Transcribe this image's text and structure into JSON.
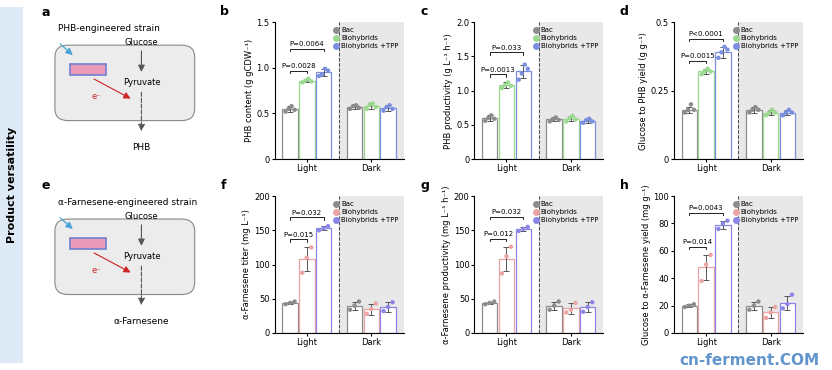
{
  "side_label": "Product versatility",
  "watermark": "cn-ferment.COM",
  "diagrams": [
    {
      "panel": "a",
      "title": "PHB-engineered strain",
      "substrate": "Glucose",
      "intermediate": "Pyruvate",
      "electron": "e⁻",
      "product": "PHB"
    },
    {
      "panel": "e",
      "title": "α-Farnesene-engineered strain",
      "substrate": "Glucose",
      "intermediate": "Pyruvate",
      "electron": "e⁻",
      "product": "α-Farnesene"
    }
  ],
  "chart_data": [
    {
      "type": "bar",
      "panel": "b",
      "y_label": "PHB content (g gCDW⁻¹)",
      "categories": [
        "Light",
        "Dark"
      ],
      "ylim": [
        0,
        1.5
      ],
      "yticks": [
        0,
        0.5,
        {
          "value": 1,
          "label": "1.0"
        },
        1.5
      ],
      "legend": "upper right",
      "series": [
        {
          "name": "Bac",
          "color": "#8c8c8c",
          "values": [
            0.55,
            0.57
          ],
          "errors": [
            0.03,
            0.02
          ],
          "points": [
            [
              0.52,
              0.55,
              0.58,
              0.54
            ],
            [
              0.55,
              0.58,
              0.59,
              0.56
            ]
          ]
        },
        {
          "name": "Biohybrids",
          "color": "#9ad98f",
          "values": [
            0.86,
            0.58
          ],
          "errors": [
            0.02,
            0.03
          ],
          "points": [
            [
              0.84,
              0.86,
              0.88,
              0.85
            ],
            [
              0.55,
              0.6,
              0.61,
              0.57
            ]
          ]
        },
        {
          "name": "Biohybrids +TPP",
          "color": "#7b8fe0",
          "values": [
            0.95,
            0.56
          ],
          "errors": [
            0.04,
            0.03
          ],
          "points": [
            [
              0.91,
              0.93,
              0.99,
              0.97
            ],
            [
              0.53,
              0.57,
              0.59,
              0.55
            ]
          ]
        }
      ],
      "brackets": [
        {
          "category": "Light",
          "from": "Bac",
          "to": "Biohybrids",
          "label": "P=0.0028"
        },
        {
          "category": "Light",
          "from": "Bac",
          "to": "Biohybrids +TPP",
          "label": "P=0.0064"
        }
      ]
    },
    {
      "type": "bar",
      "panel": "c",
      "y_label": "PHB productivity (g L⁻¹ h⁻¹)",
      "categories": [
        "Light",
        "Dark"
      ],
      "ylim": [
        0,
        2
      ],
      "yticks": [
        0,
        0.5,
        {
          "value": 1,
          "label": "1.0"
        },
        1.5,
        {
          "value": 2,
          "label": "2.0"
        }
      ],
      "legend": "upper right",
      "series": [
        {
          "name": "Bac",
          "color": "#8c8c8c",
          "values": [
            0.6,
            0.58
          ],
          "errors": [
            0.04,
            0.03
          ],
          "points": [
            [
              0.56,
              0.6,
              0.64,
              0.59
            ],
            [
              0.55,
              0.58,
              0.61,
              0.57
            ]
          ]
        },
        {
          "name": "Biohybrids",
          "color": "#9ad98f",
          "values": [
            1.08,
            0.59
          ],
          "errors": [
            0.04,
            0.04
          ],
          "points": [
            [
              1.04,
              1.08,
              1.12,
              1.07
            ],
            [
              0.55,
              0.6,
              0.63,
              0.58
            ]
          ]
        },
        {
          "name": "Biohybrids +TPP",
          "color": "#7b8fe0",
          "values": [
            1.28,
            0.56
          ],
          "errors": [
            0.1,
            0.03
          ],
          "points": [
            [
              1.16,
              1.25,
              1.38,
              1.32
            ],
            [
              0.53,
              0.57,
              0.59,
              0.55
            ]
          ]
        }
      ],
      "brackets": [
        {
          "category": "Light",
          "from": "Bac",
          "to": "Biohybrids",
          "label": "P=0.0013"
        },
        {
          "category": "Light",
          "from": "Bac",
          "to": "Biohybrids +TPP",
          "label": "P=0.033"
        }
      ]
    },
    {
      "type": "bar",
      "panel": "d",
      "y_label": "Glucose to PHB yield (g g⁻¹)",
      "categories": [
        "Light",
        "Dark"
      ],
      "ylim": [
        0,
        0.5
      ],
      "yticks": [
        0,
        0.25,
        0.5
      ],
      "legend": "upper right",
      "series": [
        {
          "name": "Bac",
          "color": "#8c8c8c",
          "values": [
            0.18,
            0.18
          ],
          "errors": [
            0.01,
            0.01
          ],
          "points": [
            [
              0.17,
              0.18,
              0.2,
              0.18
            ],
            [
              0.17,
              0.18,
              0.19,
              0.18
            ]
          ]
        },
        {
          "name": "Biohybrids",
          "color": "#9ad98f",
          "values": [
            0.32,
            0.17
          ],
          "errors": [
            0.01,
            0.01
          ],
          "points": [
            [
              0.31,
              0.32,
              0.33,
              0.32
            ],
            [
              0.16,
              0.17,
              0.18,
              0.17
            ]
          ]
        },
        {
          "name": "Biohybrids +TPP",
          "color": "#7b8fe0",
          "values": [
            0.39,
            0.17
          ],
          "errors": [
            0.02,
            0.01
          ],
          "points": [
            [
              0.37,
              0.39,
              0.41,
              0.4
            ],
            [
              0.16,
              0.17,
              0.18,
              0.17
            ]
          ]
        }
      ],
      "brackets": [
        {
          "category": "Light",
          "from": "Bac",
          "to": "Biohybrids",
          "label": "P=0.0015"
        },
        {
          "category": "Light",
          "from": "Bac",
          "to": "Biohybrids +TPP",
          "label": "P<0.0001"
        }
      ]
    },
    {
      "type": "bar",
      "panel": "f",
      "y_label": "α-Farnesene titer (mg L⁻¹)",
      "categories": [
        "Light",
        "Dark"
      ],
      "ylim": [
        0,
        200
      ],
      "yticks": [
        0,
        50,
        100,
        150,
        200
      ],
      "legend": "upper right",
      "series": [
        {
          "name": "Bac",
          "color": "#8c8c8c",
          "values": [
            44,
            40
          ],
          "errors": [
            2,
            6
          ],
          "points": [
            [
              42,
              44,
              46
            ],
            [
              34,
              40,
              46
            ]
          ]
        },
        {
          "name": "Biohybrids",
          "color": "#eba3a3",
          "values": [
            108,
            35
          ],
          "errors": [
            17,
            8
          ],
          "points": [
            [
              88,
              110,
              125
            ],
            [
              28,
              35,
              43
            ]
          ]
        },
        {
          "name": "Biohybrids +TPP",
          "color": "#8a85e6",
          "values": [
            153,
            38
          ],
          "errors": [
            3,
            7
          ],
          "points": [
            [
              150,
              153,
              156
            ],
            [
              32,
              38,
              45
            ]
          ]
        }
      ],
      "brackets": [
        {
          "category": "Light",
          "from": "Bac",
          "to": "Biohybrids",
          "label": "P=0.015"
        },
        {
          "category": "Light",
          "from": "Bac",
          "to": "Biohybrids +TPP",
          "label": "P=0.032"
        }
      ]
    },
    {
      "type": "bar",
      "panel": "g",
      "y_label": "α-Farnesene productivity (mg L⁻¹ h⁻¹)",
      "categories": [
        "Light",
        "Dark"
      ],
      "ylim": [
        0,
        200
      ],
      "yticks": [
        0,
        50,
        100,
        150,
        200
      ],
      "legend": "upper right",
      "series": [
        {
          "name": "Bac",
          "color": "#8c8c8c",
          "values": [
            44,
            40
          ],
          "errors": [
            2,
            6
          ],
          "points": [
            [
              42,
              44,
              46
            ],
            [
              34,
              40,
              46
            ]
          ]
        },
        {
          "name": "Biohybrids",
          "color": "#eba3a3",
          "values": [
            108,
            36
          ],
          "errors": [
            18,
            8
          ],
          "points": [
            [
              87,
              112,
              126
            ],
            [
              30,
              34,
              44
            ]
          ]
        },
        {
          "name": "Biohybrids +TPP",
          "color": "#8a85e6",
          "values": [
            152,
            38
          ],
          "errors": [
            3,
            7
          ],
          "points": [
            [
              149,
              152,
              155
            ],
            [
              31,
              38,
              45
            ]
          ]
        }
      ],
      "brackets": [
        {
          "category": "Light",
          "from": "Bac",
          "to": "Biohybrids",
          "label": "P=0.012"
        },
        {
          "category": "Light",
          "from": "Bac",
          "to": "Biohybrids +TPP",
          "label": "P=0.032"
        }
      ]
    },
    {
      "type": "bar",
      "panel": "h",
      "y_label": "Glucose to α-Farnesene yield (mg g⁻¹)",
      "categories": [
        "Light",
        "Dark"
      ],
      "ylim": [
        0,
        100
      ],
      "yticks": [
        0,
        20,
        40,
        60,
        80,
        100
      ],
      "legend": "upper right",
      "series": [
        {
          "name": "Bac",
          "color": "#8c8c8c",
          "values": [
            20,
            20
          ],
          "errors": [
            1,
            3
          ],
          "points": [
            [
              19,
              20,
              21
            ],
            [
              17,
              20,
              23
            ]
          ]
        },
        {
          "name": "Biohybrids",
          "color": "#eba3a3",
          "values": [
            48,
            15
          ],
          "errors": [
            9,
            4
          ],
          "points": [
            [
              38,
              50,
              57
            ],
            [
              11,
              15,
              19
            ]
          ]
        },
        {
          "name": "Biohybrids +TPP",
          "color": "#8a85e6",
          "values": [
            79,
            22
          ],
          "errors": [
            3,
            5
          ],
          "points": [
            [
              76,
              80,
              82
            ],
            [
              18,
              21,
              28
            ]
          ]
        }
      ],
      "brackets": [
        {
          "category": "Light",
          "from": "Bac",
          "to": "Biohybrids",
          "label": "P=0.014"
        },
        {
          "category": "Light",
          "from": "Bac",
          "to": "Biohybrids +TPP",
          "label": "P=0.0043"
        }
      ]
    }
  ]
}
